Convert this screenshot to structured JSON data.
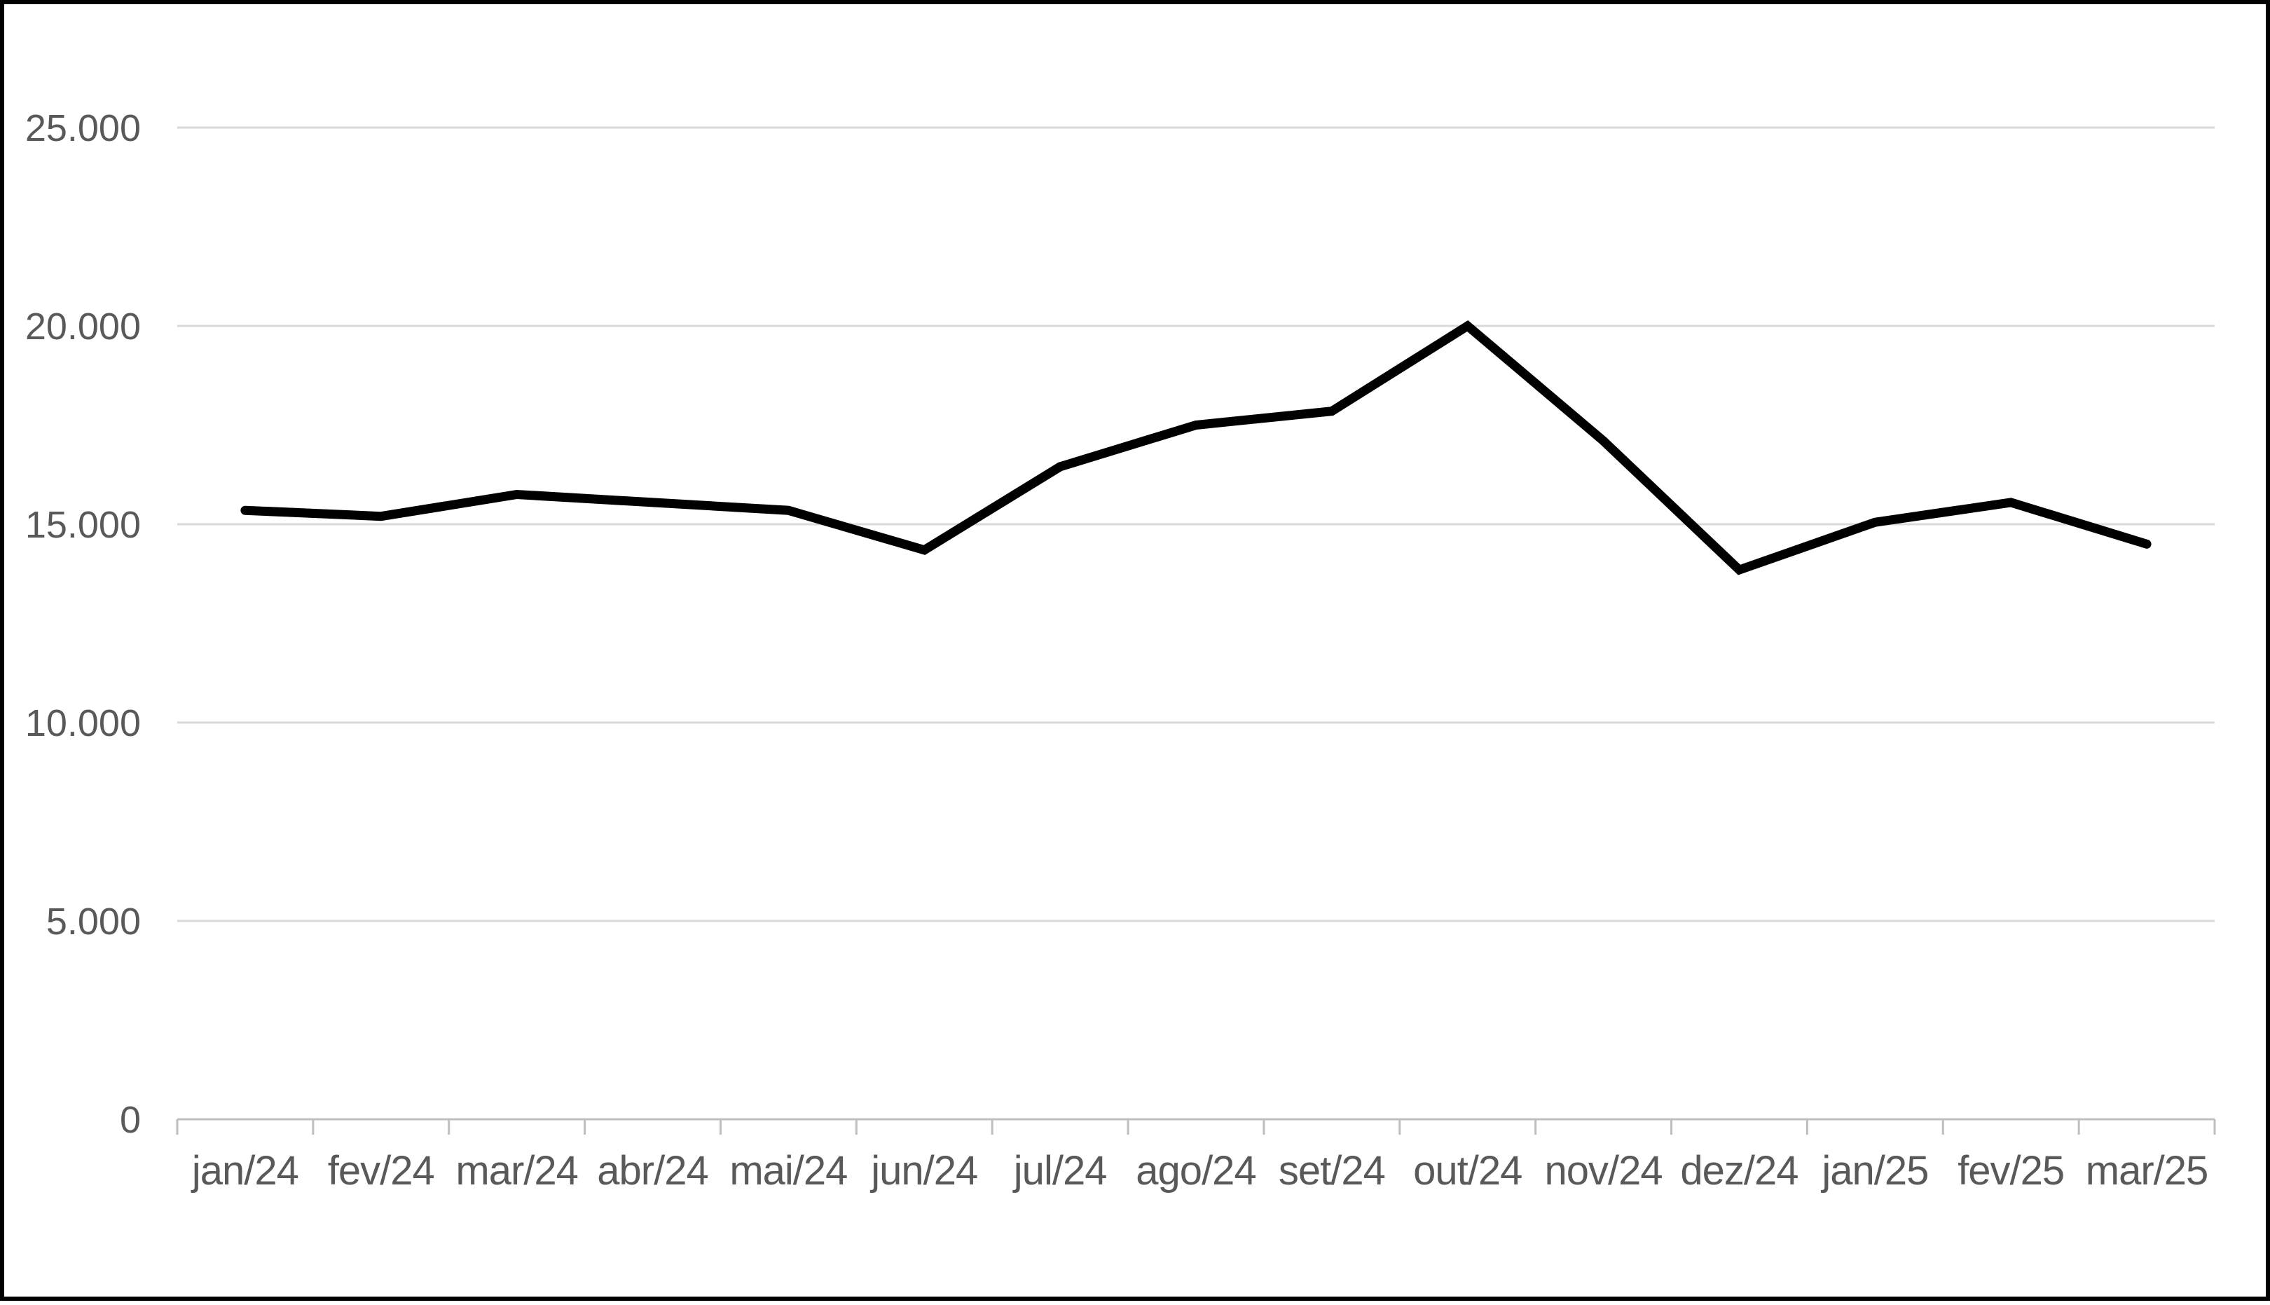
{
  "window": {
    "background": "#FFFFFF",
    "frame_border_color": "#000000"
  },
  "chart_data": {
    "type": "line",
    "title": "",
    "categories": [
      "jan/24",
      "fev/24",
      "mar/24",
      "abr/24",
      "mai/24",
      "jun/24",
      "jul/24",
      "ago/24",
      "set/24",
      "out/24",
      "nov/24",
      "dez/24",
      "jan/25",
      "fev/25",
      "mar/25"
    ],
    "series": [
      {
        "name": "",
        "values": [
          15350,
          15200,
          15750,
          15550,
          15350,
          14350,
          16450,
          17500,
          17850,
          20000,
          17100,
          13850,
          15050,
          15550,
          14500
        ]
      }
    ],
    "xlabel": "",
    "ylabel": "",
    "ylim": [
      0,
      25000
    ],
    "y_tick_step": 5000,
    "y_tick_labels": [
      "0",
      "5.000",
      "10.000",
      "15.000",
      "20.000",
      "25.000"
    ],
    "grid": "horizontal",
    "legend": "none",
    "colors": {
      "line": "#000000",
      "gridline": "#D9D9D9",
      "axis": "#BFBFBF",
      "tick_label": "#595959",
      "background": "#FFFFFF"
    }
  }
}
